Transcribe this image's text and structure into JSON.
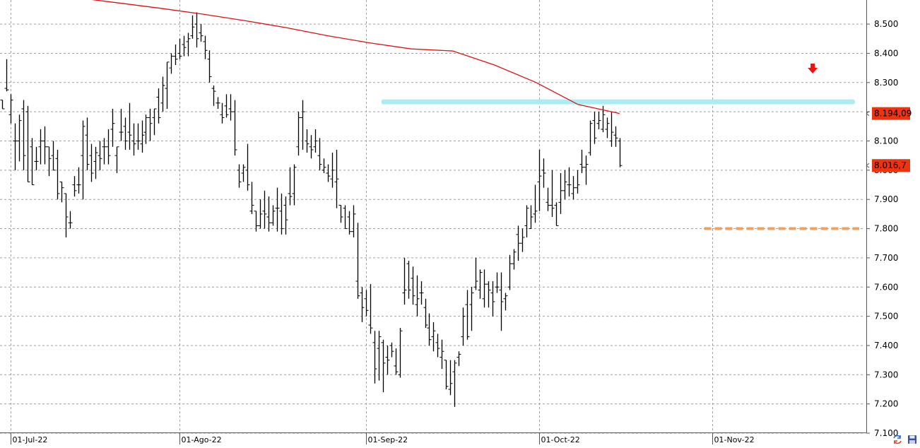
{
  "chart_data": {
    "type": "ohlc",
    "title": "",
    "xlabel": "",
    "ylabel": "",
    "ylim": [
      7100,
      8600
    ],
    "grid": true,
    "y_ticks": [
      "7.100",
      "7.200",
      "7.300",
      "7.400",
      "7.500",
      "7.600",
      "7.700",
      "7.800",
      "7.900",
      "8.000",
      "8.100",
      "8.200",
      "8.300",
      "8.400",
      "8.500"
    ],
    "x_ticks": [
      {
        "label": "01-Jul-22",
        "bar": 2
      },
      {
        "label": "01-Ago-22",
        "bar": 42
      },
      {
        "label": "01-Sep-22",
        "bar": 86
      },
      {
        "label": "01-Oct-22",
        "bar": 127
      },
      {
        "label": "01-Nov-22",
        "bar": 168
      }
    ],
    "ohlc": [
      [
        8240,
        8240,
        8210,
        8210
      ],
      [
        8280,
        8380,
        8270,
        8275
      ],
      [
        8190,
        8260,
        8160,
        8240
      ],
      [
        8100,
        8160,
        8000,
        8100
      ],
      [
        8100,
        8190,
        8030,
        8170
      ],
      [
        8210,
        8240,
        8000,
        8050
      ],
      [
        8200,
        8220,
        7960,
        7960
      ],
      [
        8080,
        8110,
        7950,
        7950
      ],
      [
        8030,
        8080,
        8000,
        8030
      ],
      [
        8080,
        8140,
        8020,
        8100
      ],
      [
        8100,
        8150,
        8020,
        8080
      ],
      [
        8080,
        8080,
        7980,
        8040
      ],
      [
        8050,
        8100,
        8000,
        8000
      ],
      [
        8040,
        8070,
        7900,
        7920
      ],
      [
        7960,
        7960,
        7890,
        7940
      ],
      [
        7920,
        7920,
        7770,
        7840
      ],
      [
        7820,
        7860,
        7800,
        7820
      ],
      [
        7950,
        7980,
        7910,
        7930
      ],
      [
        7950,
        8010,
        7920,
        7950
      ],
      [
        8050,
        8170,
        7900,
        8150
      ],
      [
        8120,
        8180,
        8000,
        8020
      ],
      [
        8050,
        8090,
        7960,
        7990
      ],
      [
        8030,
        8080,
        7970,
        8060
      ],
      [
        8050,
        8100,
        8000,
        8040
      ],
      [
        8080,
        8110,
        8020,
        8080
      ],
      [
        8080,
        8140,
        8020,
        8050
      ],
      [
        8140,
        8210,
        8080,
        8160
      ],
      [
        8050,
        8080,
        7990,
        8080
      ],
      [
        8130,
        8210,
        8100,
        8130
      ],
      [
        8150,
        8180,
        8070,
        8100
      ],
      [
        8130,
        8230,
        8070,
        8120
      ],
      [
        8100,
        8160,
        8050,
        8090
      ],
      [
        8100,
        8160,
        8070,
        8100
      ],
      [
        8090,
        8170,
        8060,
        8120
      ],
      [
        8130,
        8190,
        8090,
        8180
      ],
      [
        8180,
        8210,
        8100,
        8160
      ],
      [
        8180,
        8210,
        8120,
        8210
      ],
      [
        8250,
        8280,
        8160,
        8180
      ],
      [
        8230,
        8320,
        8200,
        8290
      ],
      [
        8280,
        8370,
        8210,
        8370
      ],
      [
        8350,
        8400,
        8330,
        8390
      ],
      [
        8390,
        8430,
        8360,
        8380
      ],
      [
        8400,
        8450,
        8380,
        8390
      ],
      [
        8430,
        8460,
        8390,
        8420
      ],
      [
        8440,
        8470,
        8390,
        8450
      ],
      [
        8460,
        8530,
        8450,
        8490
      ],
      [
        8500,
        8540,
        8420,
        8450
      ],
      [
        8470,
        8500,
        8440,
        8460
      ],
      [
        8440,
        8460,
        8380,
        8410
      ],
      [
        8380,
        8410,
        8300,
        8320
      ],
      [
        8280,
        8290,
        8220,
        8270
      ],
      [
        8230,
        8250,
        8210,
        8230
      ],
      [
        8190,
        8230,
        8160,
        8180
      ],
      [
        8220,
        8260,
        8180,
        8190
      ],
      [
        8210,
        8260,
        8170,
        8200
      ],
      [
        8200,
        8240,
        8050,
        8070
      ],
      [
        8000,
        8020,
        7940,
        7960
      ],
      [
        7990,
        8020,
        7960,
        8010
      ],
      [
        8000,
        8090,
        7930,
        7950
      ],
      [
        7860,
        7960,
        7850,
        7880
      ],
      [
        7860,
        7860,
        7790,
        7810
      ],
      [
        7810,
        7900,
        7800,
        7850
      ],
      [
        7860,
        7930,
        7800,
        7850
      ],
      [
        7840,
        7910,
        7790,
        7820
      ],
      [
        7820,
        7880,
        7810,
        7860
      ],
      [
        7870,
        7940,
        7790,
        7870
      ],
      [
        7860,
        7920,
        7780,
        7800
      ],
      [
        7880,
        7910,
        7780,
        7830
      ],
      [
        7920,
        8010,
        7880,
        7910
      ],
      [
        7920,
        8020,
        7880,
        8010
      ],
      [
        8080,
        8200,
        8050,
        8180
      ],
      [
        8180,
        8240,
        8070,
        8200
      ],
      [
        8100,
        8140,
        8060,
        8090
      ],
      [
        8080,
        8120,
        8040,
        8070
      ],
      [
        8080,
        8140,
        8060,
        8100
      ],
      [
        8050,
        8110,
        8000,
        8020
      ],
      [
        8000,
        8040,
        7990,
        8010
      ],
      [
        7990,
        8020,
        7960,
        7980
      ],
      [
        7970,
        8060,
        7940,
        8000
      ],
      [
        7960,
        8070,
        7870,
        7970
      ],
      [
        7880,
        7880,
        7820,
        7840
      ],
      [
        7870,
        7880,
        7800,
        7800
      ],
      [
        7840,
        7860,
        7780,
        7790
      ],
      [
        7790,
        7880,
        7770,
        7850
      ],
      [
        7620,
        7820,
        7560,
        7570
      ],
      [
        7580,
        7600,
        7480,
        7530
      ],
      [
        7560,
        7590,
        7500,
        7520
      ],
      [
        7470,
        7610,
        7440,
        7460
      ],
      [
        7410,
        7450,
        7270,
        7320
      ],
      [
        7390,
        7450,
        7280,
        7430
      ],
      [
        7410,
        7420,
        7240,
        7340
      ],
      [
        7360,
        7400,
        7300,
        7350
      ],
      [
        7400,
        7410,
        7360,
        7380
      ],
      [
        7330,
        7390,
        7300,
        7310
      ],
      [
        7300,
        7460,
        7290,
        7450
      ],
      [
        7580,
        7700,
        7540,
        7590
      ],
      [
        7680,
        7690,
        7560,
        7590
      ],
      [
        7630,
        7670,
        7540,
        7570
      ],
      [
        7540,
        7640,
        7500,
        7560
      ],
      [
        7580,
        7620,
        7540,
        7580
      ],
      [
        7530,
        7560,
        7460,
        7470
      ],
      [
        7460,
        7510,
        7400,
        7420
      ],
      [
        7430,
        7480,
        7380,
        7450
      ],
      [
        7410,
        7440,
        7360,
        7390
      ],
      [
        7360,
        7420,
        7320,
        7380
      ],
      [
        7350,
        7350,
        7250,
        7260
      ],
      [
        7250,
        7350,
        7230,
        7270
      ],
      [
        7310,
        7350,
        7190,
        7340
      ],
      [
        7360,
        7380,
        7330,
        7370
      ],
      [
        7430,
        7530,
        7400,
        7500
      ],
      [
        7540,
        7590,
        7420,
        7430
      ],
      [
        7540,
        7600,
        7450,
        7580
      ],
      [
        7600,
        7700,
        7590,
        7620
      ],
      [
        7590,
        7660,
        7560,
        7650
      ],
      [
        7560,
        7660,
        7530,
        7610
      ],
      [
        7610,
        7620,
        7530,
        7590
      ],
      [
        7580,
        7620,
        7500,
        7550
      ],
      [
        7600,
        7650,
        7580,
        7600
      ],
      [
        7590,
        7650,
        7450,
        7550
      ],
      [
        7560,
        7580,
        7520,
        7570
      ],
      [
        7600,
        7710,
        7590,
        7680
      ],
      [
        7680,
        7730,
        7660,
        7720
      ],
      [
        7780,
        7810,
        7690,
        7750
      ],
      [
        7750,
        7800,
        7720,
        7770
      ],
      [
        7810,
        7880,
        7770,
        7870
      ],
      [
        7800,
        7880,
        7800,
        7840
      ],
      [
        7850,
        7950,
        7820,
        7860
      ],
      [
        7960,
        8070,
        7860,
        7980
      ],
      [
        8000,
        8040,
        7940,
        7990
      ],
      [
        7890,
        7940,
        7860,
        7880
      ],
      [
        7880,
        8000,
        7840,
        7870
      ],
      [
        7880,
        7890,
        7810,
        7810
      ],
      [
        7890,
        7990,
        7850,
        7930
      ],
      [
        7930,
        8000,
        7900,
        7960
      ],
      [
        7950,
        8010,
        7910,
        7950
      ],
      [
        7920,
        7980,
        7900,
        7940
      ],
      [
        7940,
        8000,
        7920,
        7950
      ],
      [
        8020,
        8070,
        7990,
        8010
      ],
      [
        8010,
        8050,
        7950,
        8020
      ],
      [
        8060,
        8170,
        8050,
        8160
      ],
      [
        8170,
        8200,
        8090,
        8110
      ],
      [
        8160,
        8200,
        8140,
        8170
      ],
      [
        8140,
        8220,
        8130,
        8190
      ],
      [
        8140,
        8180,
        8110,
        8160
      ],
      [
        8100,
        8200,
        8080,
        8130
      ],
      [
        8120,
        8150,
        8080,
        8110
      ],
      [
        8100,
        8110,
        8010,
        8016
      ]
    ],
    "moving_average": {
      "color": "#dd1111",
      "start_bar": 8,
      "values": [
        8600,
        8590,
        8572,
        8554,
        8534,
        8512,
        8488,
        8460,
        8436,
        8415,
        8408,
        8360,
        8300,
        8225,
        8194
      ]
    },
    "annotations": {
      "resistance_band": {
        "value": 8235,
        "from_bar": 90,
        "color": "#aaeef5"
      },
      "support_line": {
        "value": 7800,
        "from_bar": 166,
        "color": "#f0a060",
        "style": "dashed"
      },
      "down_arrow": {
        "at_bar": 192,
        "color": "#ee1111"
      }
    },
    "price_badges": [
      {
        "label": "8.194,09",
        "value": 8194,
        "color": "#ee3311"
      },
      {
        "label": "8.016,7",
        "value": 8016,
        "color": "#ee3311"
      }
    ]
  },
  "corner_icons": [
    "arrows-refresh-icon",
    "floppy-save-icon"
  ]
}
